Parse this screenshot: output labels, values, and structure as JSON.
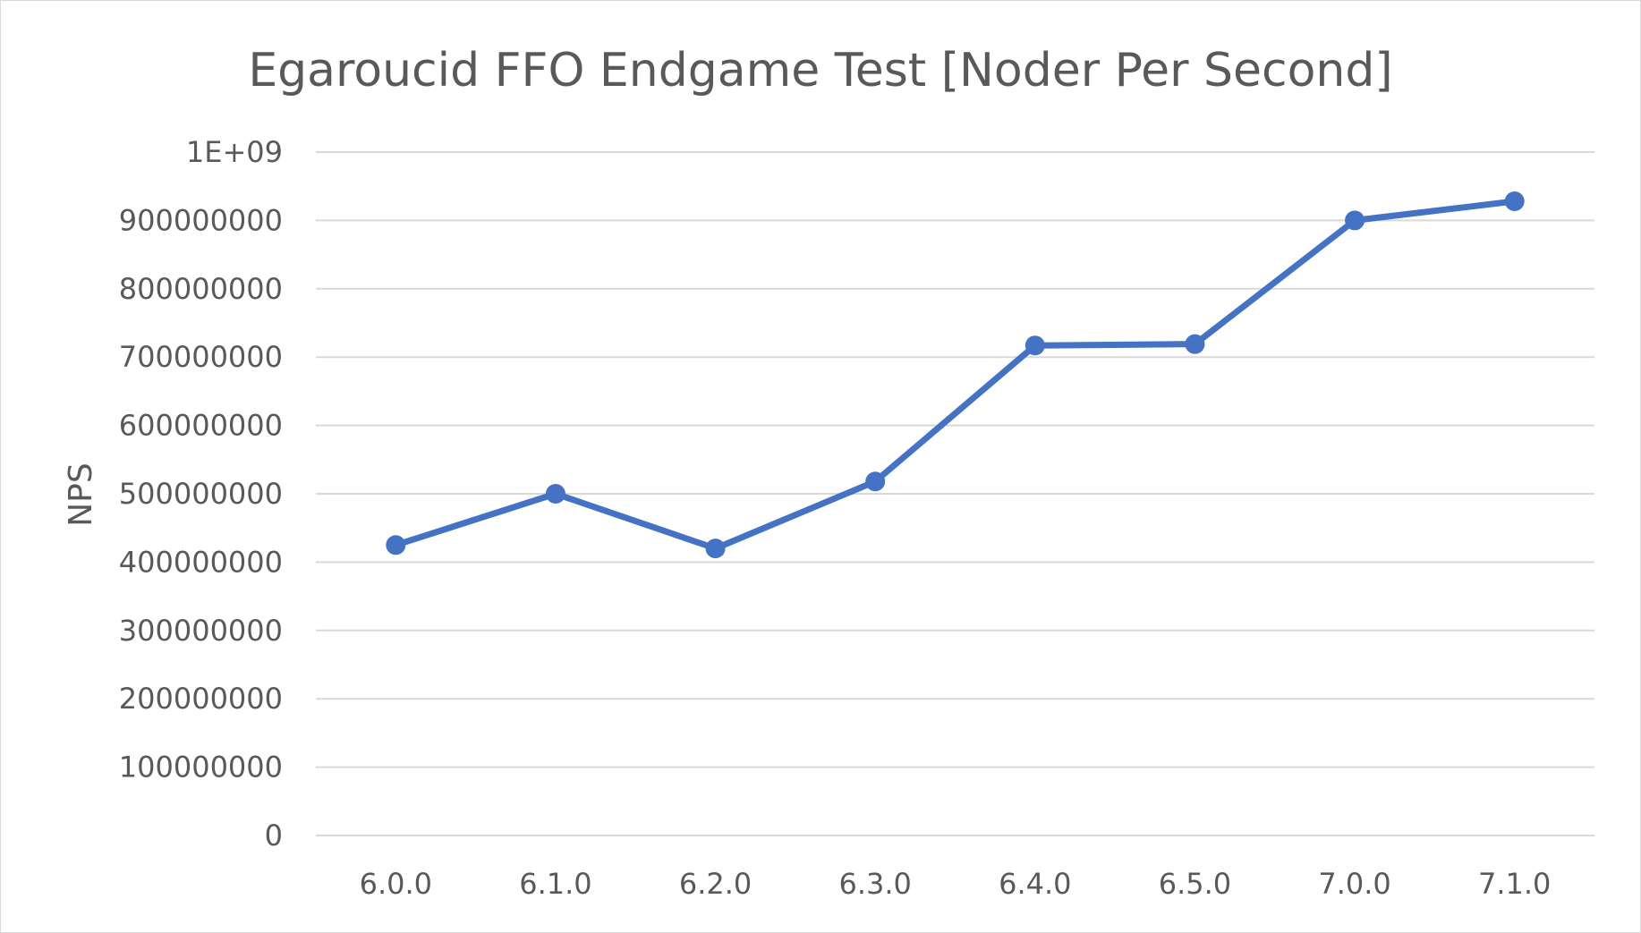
{
  "chart_data": {
    "type": "line",
    "title": "Egaroucid FFO Endgame Test [Noder Per Second]",
    "xlabel": "",
    "ylabel": "NPS",
    "categories": [
      "6.0.0",
      "6.1.0",
      "6.2.0",
      "6.3.0",
      "6.4.0",
      "6.5.0",
      "7.0.0",
      "7.1.0"
    ],
    "series": [
      {
        "values": [
          425000000,
          500000000,
          420000000,
          518000000,
          717000000,
          719000000,
          900000000,
          928000000
        ],
        "color": "#4472C4"
      }
    ],
    "ylim": [
      0,
      1000000000
    ],
    "y_ticks": [
      0,
      100000000,
      200000000,
      300000000,
      400000000,
      500000000,
      600000000,
      700000000,
      800000000,
      900000000,
      1000000000
    ],
    "y_tick_labels": [
      "0",
      "100000000",
      "200000000",
      "300000000",
      "400000000",
      "500000000",
      "600000000",
      "700000000",
      "800000000",
      "900000000",
      "1E+09"
    ],
    "grid": true,
    "legend": "none",
    "gridline_color": "#d9d9d9",
    "text_color": "#595959"
  }
}
